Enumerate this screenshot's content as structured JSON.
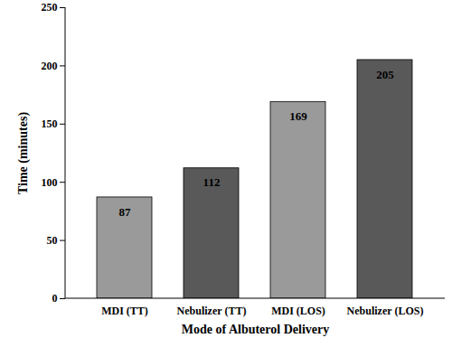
{
  "chart_data": {
    "type": "bar",
    "x_label": "Mode of Albuterol Delivery",
    "y_label": "Time (minutes)",
    "categories": [
      "MDI (TT)",
      "Nebulizer (TT)",
      "MDI (LOS)",
      "Nebulizer (LOS)"
    ],
    "values": [
      87,
      112,
      169,
      205
    ],
    "colors": [
      "#9a9a9a",
      "#595959",
      "#9a9a9a",
      "#595959"
    ],
    "ylim": [
      0,
      250
    ],
    "yticks": [
      0,
      50,
      100,
      150,
      200,
      250
    ],
    "grid": false,
    "data_labels": true
  }
}
